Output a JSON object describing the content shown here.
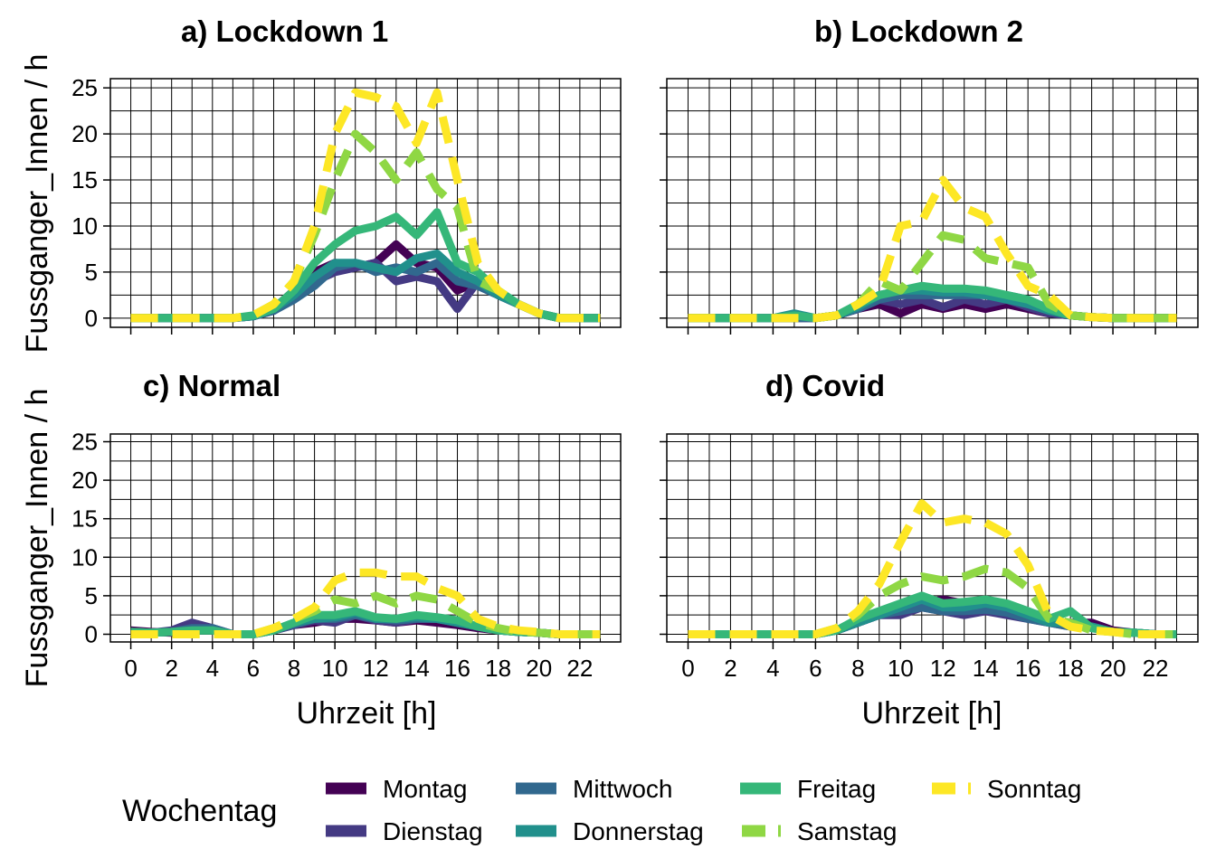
{
  "y_axis_label": "Fussganger_Innen / h",
  "x_axis_label": "Uhrzeit [h]",
  "legend": {
    "title": "Wochentag",
    "placement": "bottom"
  },
  "colors": {
    "Montag": "#440154",
    "Dienstag": "#443A83",
    "Mittwoch": "#31688E",
    "Donnerstag": "#21908C",
    "Freitag": "#35B779",
    "Samstag": "#8FD744",
    "Sonntag": "#FDE725"
  },
  "chart_data": [
    {
      "type": "line",
      "title": "a) Lockdown 1",
      "xlabel": "",
      "ylabel": "Fussganger_Innen / h",
      "xlim": [
        -1,
        24
      ],
      "ylim": [
        -1,
        26
      ],
      "xticks": [
        0,
        2,
        4,
        6,
        8,
        10,
        12,
        14,
        16,
        18,
        20,
        22
      ],
      "yticks": [
        0,
        5,
        10,
        15,
        20,
        25
      ],
      "x": [
        0,
        1,
        2,
        3,
        4,
        5,
        6,
        7,
        8,
        9,
        10,
        11,
        12,
        13,
        14,
        15,
        16,
        17,
        18,
        19,
        20,
        21,
        22,
        23
      ],
      "series": [
        {
          "name": "Montag",
          "dashed": false,
          "values": [
            0,
            0,
            0,
            0,
            0,
            0,
            0.2,
            1,
            3,
            5,
            6,
            5.5,
            6,
            8,
            6,
            5.5,
            3,
            4,
            2.5,
            1.5,
            0.5,
            0,
            0,
            0
          ]
        },
        {
          "name": "Dienstag",
          "dashed": false,
          "values": [
            0,
            0,
            0,
            0,
            0,
            0,
            0.2,
            0.8,
            2.5,
            4,
            5,
            5.5,
            6,
            4,
            4.5,
            4,
            1,
            4,
            2.5,
            1.5,
            0.5,
            0,
            0,
            0
          ]
        },
        {
          "name": "Mittwoch",
          "dashed": false,
          "values": [
            0,
            0,
            0,
            0,
            0,
            0,
            0.2,
            0.8,
            2,
            3.5,
            5.5,
            6,
            5,
            5.5,
            5,
            6,
            4,
            3.5,
            2.5,
            1.5,
            0.5,
            0,
            0,
            0
          ]
        },
        {
          "name": "Donnerstag",
          "dashed": false,
          "values": [
            0,
            0,
            0,
            0,
            0,
            0,
            0.2,
            1,
            2.5,
            4.5,
            6,
            6,
            5.5,
            5,
            6.5,
            7,
            5,
            4,
            2.5,
            1.5,
            0.5,
            0,
            0,
            0
          ]
        },
        {
          "name": "Freitag",
          "dashed": false,
          "values": [
            0,
            0,
            0,
            0,
            0,
            0,
            0.3,
            1,
            3,
            6,
            8,
            9.5,
            10,
            11,
            9,
            11.5,
            6,
            5,
            3,
            1.5,
            0.5,
            0,
            0,
            0
          ]
        },
        {
          "name": "Samstag",
          "dashed": true,
          "values": [
            0,
            0,
            0,
            0,
            0,
            0,
            0.3,
            1.5,
            4,
            9,
            15,
            20,
            18,
            15,
            18,
            14,
            12,
            4,
            3,
            1.5,
            0.5,
            0,
            0,
            0
          ]
        },
        {
          "name": "Sonntag",
          "dashed": true,
          "values": [
            0,
            0,
            0,
            0,
            0,
            0,
            0.3,
            1.5,
            4,
            10,
            20,
            24.5,
            24,
            23,
            19,
            24.5,
            15,
            6,
            3,
            1.5,
            0.5,
            0,
            0,
            0
          ]
        }
      ]
    },
    {
      "type": "line",
      "title": "b) Lockdown 2",
      "xlabel": "",
      "ylabel": "",
      "xlim": [
        -1,
        24
      ],
      "ylim": [
        -1,
        26
      ],
      "xticks": [
        0,
        2,
        4,
        6,
        8,
        10,
        12,
        14,
        16,
        18,
        20,
        22
      ],
      "yticks": [
        0,
        5,
        10,
        15,
        20,
        25
      ],
      "x": [
        0,
        1,
        2,
        3,
        4,
        5,
        6,
        7,
        8,
        9,
        10,
        11,
        12,
        13,
        14,
        15,
        16,
        17,
        18,
        19,
        20,
        21,
        22,
        23
      ],
      "series": [
        {
          "name": "Montag",
          "dashed": false,
          "values": [
            0,
            0,
            0,
            0,
            0,
            0,
            0,
            0.3,
            1,
            1.5,
            0.5,
            1.5,
            1,
            1.5,
            1,
            1.5,
            1,
            0.5,
            0.3,
            0.1,
            0,
            0,
            0,
            0
          ]
        },
        {
          "name": "Dienstag",
          "dashed": false,
          "values": [
            0,
            0,
            0,
            0,
            0,
            0,
            0,
            0.3,
            1,
            2,
            1.5,
            2,
            1.2,
            2,
            1.5,
            2,
            1.2,
            0.5,
            0.3,
            0.1,
            0,
            0,
            0,
            0
          ]
        },
        {
          "name": "Mittwoch",
          "dashed": false,
          "values": [
            0,
            0,
            0,
            0,
            0,
            0,
            0,
            0.3,
            1,
            2,
            2.5,
            2.5,
            2.5,
            2.5,
            2.5,
            2.5,
            2,
            1,
            0.3,
            0.1,
            0,
            0,
            0,
            0
          ]
        },
        {
          "name": "Donnerstag",
          "dashed": false,
          "values": [
            0,
            0,
            0,
            0,
            0,
            0.5,
            0,
            0.3,
            1.2,
            2.5,
            3,
            3,
            2.8,
            2.8,
            2.5,
            2,
            1.5,
            0.8,
            0.3,
            0.1,
            0,
            0,
            0,
            0
          ]
        },
        {
          "name": "Freitag",
          "dashed": false,
          "values": [
            0,
            0,
            0,
            0,
            0,
            0.3,
            0,
            0.3,
            1.5,
            2.5,
            3,
            3.5,
            3.2,
            3.2,
            3,
            2.5,
            2,
            1,
            0.3,
            0.1,
            0,
            0,
            0,
            0
          ]
        },
        {
          "name": "Samstag",
          "dashed": true,
          "values": [
            0,
            0,
            0,
            0,
            0,
            0,
            0,
            0.3,
            1.5,
            4,
            3,
            6,
            9,
            8.5,
            6.5,
            6,
            5.5,
            1.5,
            0.3,
            0.1,
            0,
            0,
            0,
            0
          ]
        },
        {
          "name": "Sonntag",
          "dashed": true,
          "values": [
            0,
            0,
            0,
            0,
            0,
            0,
            0,
            0.3,
            1.5,
            3,
            10,
            10.5,
            15,
            12,
            11,
            7,
            3.5,
            2.5,
            0.3,
            0.1,
            0,
            0,
            0,
            0
          ]
        }
      ]
    },
    {
      "type": "line",
      "title": "c) Normal",
      "xlabel": "Uhrzeit [h]",
      "ylabel": "Fussganger_Innen / h",
      "xlim": [
        -1,
        24
      ],
      "ylim": [
        -1,
        26
      ],
      "xticks": [
        0,
        2,
        4,
        6,
        8,
        10,
        12,
        14,
        16,
        18,
        20,
        22
      ],
      "yticks": [
        0,
        5,
        10,
        15,
        20,
        25
      ],
      "x": [
        0,
        1,
        2,
        3,
        4,
        5,
        6,
        7,
        8,
        9,
        10,
        11,
        12,
        13,
        14,
        15,
        16,
        17,
        18,
        19,
        20,
        21,
        22,
        23
      ],
      "series": [
        {
          "name": "Montag",
          "dashed": false,
          "values": [
            0.5,
            0.3,
            0.2,
            1,
            0.5,
            0,
            0,
            0.5,
            1.2,
            1.5,
            2,
            2,
            1.8,
            1.5,
            1.8,
            1.5,
            1.2,
            0.8,
            0.5,
            0.3,
            0.2,
            0,
            0,
            0
          ]
        },
        {
          "name": "Dienstag",
          "dashed": false,
          "values": [
            0.3,
            0.2,
            0.5,
            1.5,
            0.8,
            0,
            0,
            0.5,
            1.2,
            1.8,
            1.5,
            2.5,
            1.8,
            1.5,
            2,
            2,
            1.5,
            1,
            0.5,
            0.3,
            0.2,
            0,
            0,
            0
          ]
        },
        {
          "name": "Mittwoch",
          "dashed": false,
          "values": [
            0.3,
            0.2,
            0.3,
            0.8,
            0.8,
            0,
            0,
            0.5,
            1.3,
            2,
            2,
            2.5,
            2,
            1.8,
            2,
            2,
            1.5,
            1,
            0.5,
            0.3,
            0.2,
            0,
            0,
            0
          ]
        },
        {
          "name": "Donnerstag",
          "dashed": false,
          "values": [
            0.3,
            0.2,
            0.3,
            0.5,
            0.5,
            0,
            0,
            0.5,
            1.5,
            2,
            2.2,
            2.8,
            2,
            2,
            2.2,
            2,
            1.5,
            1,
            0.5,
            0.3,
            0.2,
            0,
            0,
            0
          ]
        },
        {
          "name": "Freitag",
          "dashed": false,
          "values": [
            0.3,
            0.2,
            0.3,
            0.5,
            0.5,
            0,
            0,
            0.5,
            1.5,
            2.5,
            2.5,
            3,
            2.2,
            2,
            2.5,
            2.2,
            1.8,
            1,
            0.5,
            0.3,
            0.2,
            0,
            0,
            0
          ]
        },
        {
          "name": "Samstag",
          "dashed": true,
          "values": [
            0,
            0,
            0,
            0,
            0,
            0,
            0,
            0.8,
            2,
            3,
            4.5,
            4,
            5,
            4,
            5,
            4.5,
            3,
            1.5,
            0.8,
            0.3,
            0.2,
            0,
            0,
            0
          ]
        },
        {
          "name": "Sonntag",
          "dashed": true,
          "values": [
            0,
            0,
            0,
            0,
            0,
            0,
            0,
            0.8,
            2,
            3.5,
            7,
            8,
            8,
            7.5,
            7.5,
            6,
            5,
            2,
            1,
            0.5,
            0.3,
            0,
            0,
            0
          ]
        }
      ]
    },
    {
      "type": "line",
      "title": "d) Covid",
      "xlabel": "Uhrzeit [h]",
      "ylabel": "",
      "xlim": [
        -1,
        24
      ],
      "ylim": [
        -1,
        26
      ],
      "xticks": [
        0,
        2,
        4,
        6,
        8,
        10,
        12,
        14,
        16,
        18,
        20,
        22
      ],
      "yticks": [
        0,
        5,
        10,
        15,
        20,
        25
      ],
      "x": [
        0,
        1,
        2,
        3,
        4,
        5,
        6,
        7,
        8,
        9,
        10,
        11,
        12,
        13,
        14,
        15,
        16,
        17,
        18,
        19,
        20,
        21,
        22,
        23
      ],
      "series": [
        {
          "name": "Montag",
          "dashed": false,
          "values": [
            0,
            0,
            0,
            0,
            0,
            0,
            0,
            0.5,
            1.5,
            2.5,
            3,
            4,
            4.5,
            4,
            4.2,
            3.5,
            2.5,
            1.5,
            1.5,
            1.5,
            0.5,
            0.2,
            0,
            0
          ]
        },
        {
          "name": "Dienstag",
          "dashed": false,
          "values": [
            0,
            0,
            0,
            0,
            0,
            0,
            0,
            0.5,
            1.5,
            2.5,
            2.5,
            3.5,
            3,
            2.5,
            3,
            2.5,
            2,
            1.5,
            1,
            1,
            0.3,
            0.2,
            0,
            0
          ]
        },
        {
          "name": "Mittwoch",
          "dashed": false,
          "values": [
            0,
            0,
            0,
            0,
            0,
            0,
            0,
            0.5,
            1.5,
            2.5,
            3,
            3.5,
            3,
            3,
            3.2,
            2.8,
            2,
            1.5,
            1,
            1,
            0.3,
            0.2,
            0,
            0
          ]
        },
        {
          "name": "Donnerstag",
          "dashed": false,
          "values": [
            0,
            0,
            0,
            0,
            0,
            0,
            0,
            0.5,
            1.5,
            2.5,
            3.5,
            4.5,
            3.5,
            3.5,
            4,
            3.5,
            2.5,
            1.5,
            1.5,
            1,
            0.3,
            0.2,
            0,
            0
          ]
        },
        {
          "name": "Freitag",
          "dashed": false,
          "values": [
            0,
            0,
            0,
            0,
            0,
            0,
            0,
            0.5,
            2,
            3,
            4,
            5,
            4,
            4.2,
            4.5,
            4,
            3,
            2,
            3,
            0.8,
            0.3,
            0.2,
            0,
            0
          ]
        },
        {
          "name": "Samstag",
          "dashed": true,
          "values": [
            0,
            0,
            0,
            0,
            0,
            0,
            0,
            0.8,
            2.5,
            5,
            6.5,
            7.5,
            7,
            7.5,
            8.5,
            8,
            6,
            2,
            1.5,
            0.5,
            0.3,
            0,
            0,
            0
          ]
        },
        {
          "name": "Sonntag",
          "dashed": true,
          "values": [
            0,
            0,
            0,
            0,
            0,
            0,
            0,
            0.8,
            3,
            6.5,
            12,
            17,
            14.5,
            15,
            14.5,
            13,
            9,
            2.5,
            1,
            0.5,
            0.3,
            0,
            0,
            0
          ]
        }
      ]
    }
  ]
}
